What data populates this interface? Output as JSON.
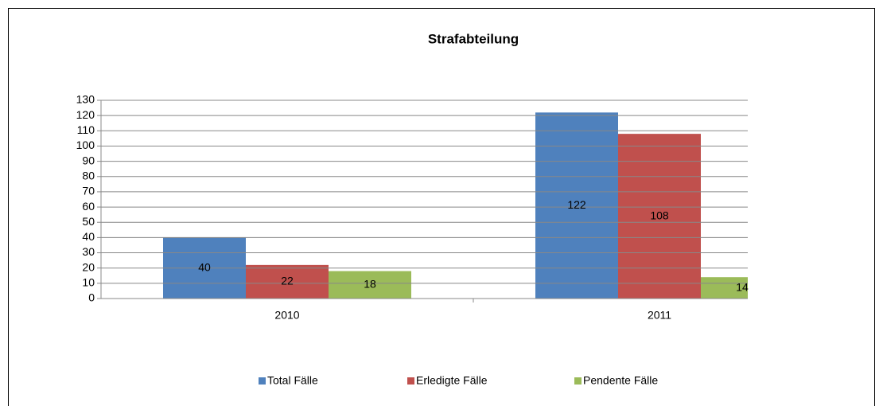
{
  "chart_data": {
    "type": "bar",
    "title": "Strafabteilung",
    "categories": [
      "2010",
      "2011"
    ],
    "series": [
      {
        "name": "Total Fälle",
        "color": "#4f81bd",
        "values": [
          40,
          122
        ]
      },
      {
        "name": "Erledigte Fälle",
        "color": "#c0504d",
        "values": [
          22,
          108
        ]
      },
      {
        "name": "Pendente Fälle",
        "color": "#9bbb59",
        "values": [
          18,
          14
        ]
      }
    ],
    "ylim": [
      0,
      130
    ],
    "yticks": [
      0,
      10,
      20,
      30,
      40,
      50,
      60,
      70,
      80,
      90,
      100,
      110,
      120,
      130
    ],
    "grid": true,
    "legend": "bottom"
  }
}
